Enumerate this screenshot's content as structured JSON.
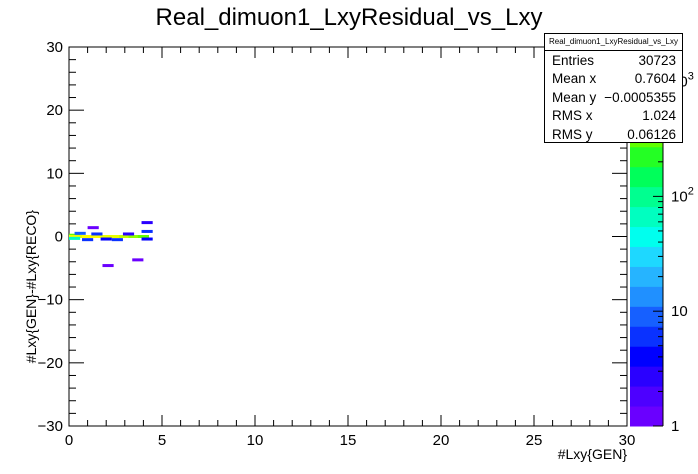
{
  "chart_data": {
    "type": "heatmap",
    "title": "Real_dimuon1_LxyResidual_vs_Lxy",
    "xlabel": "#Lxy{GEN}",
    "ylabel": "#Lxy{GEN}-#Lxy{RECO}",
    "xlim": [
      0,
      30
    ],
    "ylim": [
      -30,
      30
    ],
    "x_ticks": [
      "0",
      "5",
      "10",
      "15",
      "20",
      "25",
      "30"
    ],
    "y_ticks": [
      "−30",
      "−20",
      "−10",
      "0",
      "10",
      "20",
      "30"
    ],
    "z_scale": "log",
    "z_ticks": [
      "1",
      "10",
      "10²",
      "10³"
    ],
    "grid": false,
    "palette": [
      "#6a00ff",
      "#4d00ff",
      "#2a00ff",
      "#0000ff",
      "#0a32ff",
      "#1660ff",
      "#2090ff",
      "#26b4ff",
      "#1ed8ff",
      "#00ffee",
      "#00ffc0",
      "#00ff90",
      "#00ff5a",
      "#24ff24",
      "#60ff00",
      "#90ff00",
      "#c4ff00",
      "#e8ff00",
      "#ffff00"
    ],
    "cells": [
      {
        "x": 0.3,
        "y": 0.2,
        "count": 300
      },
      {
        "x": 0.3,
        "y": 0.0,
        "count": 900
      },
      {
        "x": 0.6,
        "y": 0.0,
        "count": 1200
      },
      {
        "x": 1.0,
        "y": 0.0,
        "count": 1500
      },
      {
        "x": 1.5,
        "y": 0.0,
        "count": 1400
      },
      {
        "x": 2.0,
        "y": 0.0,
        "count": 1100
      },
      {
        "x": 2.5,
        "y": 0.0,
        "count": 900
      },
      {
        "x": 3.0,
        "y": 0.0,
        "count": 700
      },
      {
        "x": 3.5,
        "y": 0.0,
        "count": 500
      },
      {
        "x": 4.0,
        "y": 0.0,
        "count": 300
      },
      {
        "x": 0.3,
        "y": -0.3,
        "count": 60
      },
      {
        "x": 0.6,
        "y": 0.5,
        "count": 8
      },
      {
        "x": 1.0,
        "y": -0.5,
        "count": 6
      },
      {
        "x": 1.5,
        "y": 0.4,
        "count": 5
      },
      {
        "x": 2.0,
        "y": -0.4,
        "count": 4
      },
      {
        "x": 2.6,
        "y": -0.5,
        "count": 5
      },
      {
        "x": 3.2,
        "y": 0.4,
        "count": 3
      },
      {
        "x": 4.2,
        "y": 0.8,
        "count": 6
      },
      {
        "x": 4.2,
        "y": -0.4,
        "count": 4
      },
      {
        "x": 1.3,
        "y": 1.4,
        "count": 1
      },
      {
        "x": 4.2,
        "y": 2.2,
        "count": 3
      },
      {
        "x": 2.1,
        "y": -4.6,
        "count": 1
      },
      {
        "x": 3.7,
        "y": -3.7,
        "count": 1
      }
    ]
  },
  "stats": {
    "title": "Real_dimuon1_LxyResidual_vs_Lxy",
    "rows": [
      {
        "label": "Entries",
        "value": "30723"
      },
      {
        "label": "Mean x",
        "value": "0.7604"
      },
      {
        "label": "Mean y",
        "value": "−0.0005355"
      },
      {
        "label": "RMS x",
        "value": "1.024"
      },
      {
        "label": "RMS y",
        "value": "0.06126"
      }
    ]
  }
}
